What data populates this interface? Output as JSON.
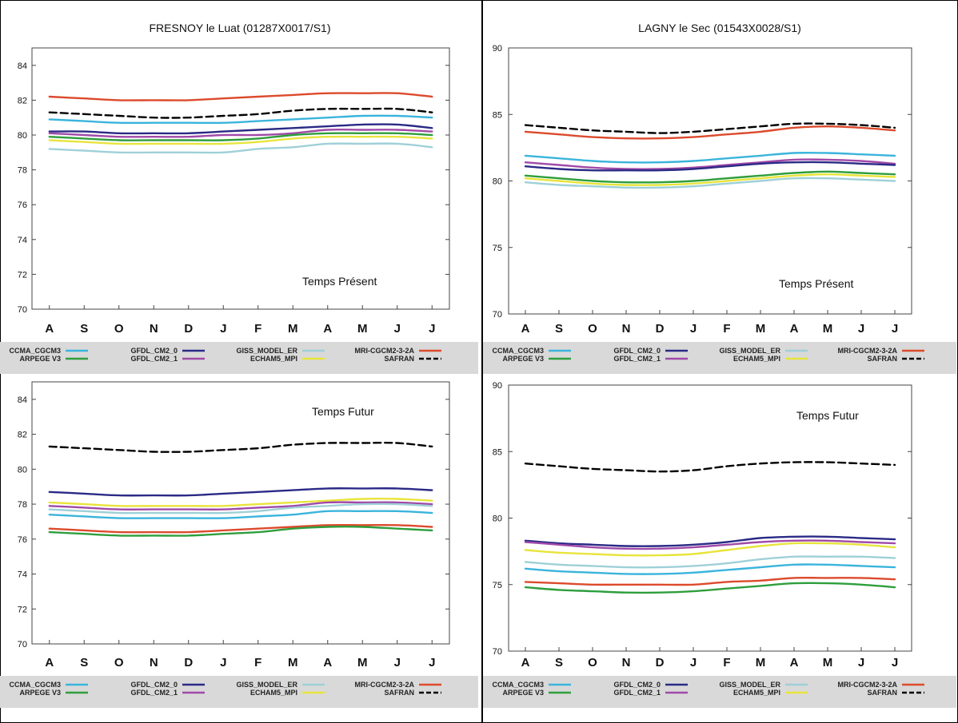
{
  "months": [
    "A",
    "S",
    "O",
    "N",
    "D",
    "J",
    "F",
    "M",
    "A",
    "M",
    "J",
    "J"
  ],
  "colors": {
    "CCMA_CGCM3": "#3ab4dc",
    "ARPEGE_V3": "#2e9e3c",
    "GFDL_CM2_0": "#2a2a86",
    "GFDL_CM2_1": "#a04aa8",
    "GISS_MODEL_ER": "#9fd0d8",
    "ECHAM5_MPI": "#e8e43c",
    "MRI_CGCM2_3_2A": "#dc4a2c",
    "SAFRAN": "#000000"
  },
  "legend_labels": {
    "CCMA_CGCM3": "CCMA_CGCM3",
    "ARPEGE_V3": "ARPEGE V3",
    "GFDL_CM2_0": "GFDL_CM2_0",
    "GFDL_CM2_1": "GFDL_CM2_1",
    "GISS_MODEL_ER": "GISS_MODEL_ER",
    "ECHAM5_MPI": "ECHAM5_MPI",
    "MRI_CGCM2_3_2A": "MRI-CGCM2-3-2A",
    "SAFRAN": "SAFRAN"
  },
  "chart_data": [
    {
      "type": "line",
      "title": "FRESNOY le Luat (01287X0017/S1)",
      "annotation": "Temps Présent",
      "categories": [
        "A",
        "S",
        "O",
        "N",
        "D",
        "J",
        "F",
        "M",
        "A",
        "M",
        "J",
        "J"
      ],
      "ylim": [
        70,
        85
      ],
      "yticks": [
        70,
        72,
        74,
        76,
        78,
        80,
        82,
        84
      ],
      "grid": false,
      "legend": "bottom",
      "series": [
        {
          "name": "MRI_CGCM2_3_2A",
          "values": [
            82.2,
            82.1,
            82.0,
            82.0,
            82.0,
            82.1,
            82.2,
            82.3,
            82.4,
            82.4,
            82.4,
            82.2
          ]
        },
        {
          "name": "SAFRAN",
          "values": [
            81.3,
            81.2,
            81.1,
            81.0,
            81.0,
            81.1,
            81.2,
            81.4,
            81.5,
            81.5,
            81.5,
            81.3
          ]
        },
        {
          "name": "CCMA_CGCM3",
          "values": [
            80.9,
            80.8,
            80.7,
            80.7,
            80.7,
            80.7,
            80.8,
            80.9,
            81.0,
            81.1,
            81.1,
            81.0
          ]
        },
        {
          "name": "GFDL_CM2_0",
          "values": [
            80.2,
            80.2,
            80.1,
            80.1,
            80.1,
            80.2,
            80.3,
            80.4,
            80.5,
            80.6,
            80.6,
            80.4
          ]
        },
        {
          "name": "GFDL_CM2_1",
          "values": [
            80.1,
            80.0,
            79.9,
            79.9,
            79.9,
            80.0,
            80.0,
            80.1,
            80.3,
            80.3,
            80.3,
            80.2
          ]
        },
        {
          "name": "ARPEGE_V3",
          "values": [
            79.9,
            79.8,
            79.7,
            79.7,
            79.7,
            79.7,
            79.8,
            80.0,
            80.1,
            80.1,
            80.1,
            80.0
          ]
        },
        {
          "name": "ECHAM5_MPI",
          "values": [
            79.7,
            79.6,
            79.5,
            79.5,
            79.5,
            79.5,
            79.6,
            79.8,
            79.9,
            79.9,
            79.9,
            79.8
          ]
        },
        {
          "name": "GISS_MODEL_ER",
          "values": [
            79.2,
            79.1,
            79.0,
            79.0,
            79.0,
            79.0,
            79.2,
            79.3,
            79.5,
            79.5,
            79.5,
            79.3
          ]
        }
      ]
    },
    {
      "type": "line",
      "title": "LAGNY le Sec (01543X0028/S1)",
      "annotation": "Temps Présent",
      "categories": [
        "A",
        "S",
        "O",
        "N",
        "D",
        "J",
        "F",
        "M",
        "A",
        "M",
        "J",
        "J"
      ],
      "ylim": [
        70,
        90
      ],
      "yticks": [
        70,
        75,
        80,
        85,
        90
      ],
      "grid": false,
      "legend": "bottom",
      "series": [
        {
          "name": "SAFRAN",
          "values": [
            84.2,
            84.0,
            83.8,
            83.7,
            83.6,
            83.7,
            83.9,
            84.1,
            84.3,
            84.3,
            84.2,
            84.0
          ]
        },
        {
          "name": "MRI_CGCM2_3_2A",
          "values": [
            83.7,
            83.5,
            83.3,
            83.2,
            83.2,
            83.3,
            83.5,
            83.7,
            84.0,
            84.1,
            84.0,
            83.8
          ]
        },
        {
          "name": "CCMA_CGCM3",
          "values": [
            81.9,
            81.7,
            81.5,
            81.4,
            81.4,
            81.5,
            81.7,
            81.9,
            82.1,
            82.1,
            82.0,
            81.9
          ]
        },
        {
          "name": "GFDL_CM2_1",
          "values": [
            81.4,
            81.2,
            81.0,
            80.9,
            80.9,
            81.0,
            81.2,
            81.4,
            81.6,
            81.6,
            81.5,
            81.3
          ]
        },
        {
          "name": "GFDL_CM2_0",
          "values": [
            81.1,
            80.9,
            80.8,
            80.8,
            80.8,
            80.9,
            81.1,
            81.3,
            81.4,
            81.4,
            81.3,
            81.2
          ]
        },
        {
          "name": "ARPEGE_V3",
          "values": [
            80.4,
            80.2,
            80.0,
            79.9,
            79.9,
            80.0,
            80.2,
            80.4,
            80.6,
            80.7,
            80.6,
            80.5
          ]
        },
        {
          "name": "ECHAM5_MPI",
          "values": [
            80.2,
            80.0,
            79.8,
            79.7,
            79.7,
            79.8,
            80.0,
            80.2,
            80.4,
            80.5,
            80.4,
            80.3
          ]
        },
        {
          "name": "GISS_MODEL_ER",
          "values": [
            79.9,
            79.7,
            79.6,
            79.5,
            79.5,
            79.6,
            79.8,
            80.0,
            80.2,
            80.2,
            80.1,
            80.0
          ]
        }
      ]
    },
    {
      "type": "line",
      "title": "",
      "annotation": "Temps Futur",
      "categories": [
        "A",
        "S",
        "O",
        "N",
        "D",
        "J",
        "F",
        "M",
        "A",
        "M",
        "J",
        "J"
      ],
      "ylim": [
        70,
        85
      ],
      "yticks": [
        70,
        72,
        74,
        76,
        78,
        80,
        82,
        84
      ],
      "grid": false,
      "legend": "bottom",
      "series": [
        {
          "name": "SAFRAN",
          "values": [
            81.3,
            81.2,
            81.1,
            81.0,
            81.0,
            81.1,
            81.2,
            81.4,
            81.5,
            81.5,
            81.5,
            81.3
          ]
        },
        {
          "name": "GFDL_CM2_0",
          "values": [
            78.7,
            78.6,
            78.5,
            78.5,
            78.5,
            78.6,
            78.7,
            78.8,
            78.9,
            78.9,
            78.9,
            78.8
          ]
        },
        {
          "name": "ECHAM5_MPI",
          "values": [
            78.1,
            78.0,
            77.9,
            77.9,
            77.9,
            77.9,
            78.0,
            78.1,
            78.2,
            78.3,
            78.3,
            78.2
          ]
        },
        {
          "name": "GFDL_CM2_1",
          "values": [
            77.9,
            77.8,
            77.7,
            77.7,
            77.7,
            77.7,
            77.8,
            77.9,
            78.1,
            78.1,
            78.1,
            78.0
          ]
        },
        {
          "name": "GISS_MODEL_ER",
          "values": [
            77.7,
            77.6,
            77.5,
            77.5,
            77.5,
            77.5,
            77.6,
            77.8,
            77.9,
            78.0,
            78.0,
            77.9
          ]
        },
        {
          "name": "CCMA_CGCM3",
          "values": [
            77.4,
            77.3,
            77.2,
            77.2,
            77.2,
            77.2,
            77.3,
            77.4,
            77.6,
            77.6,
            77.6,
            77.5
          ]
        },
        {
          "name": "MRI_CGCM2_3_2A",
          "values": [
            76.6,
            76.5,
            76.4,
            76.4,
            76.4,
            76.5,
            76.6,
            76.7,
            76.8,
            76.8,
            76.8,
            76.7
          ]
        },
        {
          "name": "ARPEGE_V3",
          "values": [
            76.4,
            76.3,
            76.2,
            76.2,
            76.2,
            76.3,
            76.4,
            76.6,
            76.7,
            76.7,
            76.6,
            76.5
          ]
        }
      ]
    },
    {
      "type": "line",
      "title": "",
      "annotation": "Temps Futur",
      "categories": [
        "A",
        "S",
        "O",
        "N",
        "D",
        "J",
        "F",
        "M",
        "A",
        "M",
        "J",
        "J"
      ],
      "ylim": [
        70,
        90
      ],
      "yticks": [
        70,
        75,
        80,
        85,
        90
      ],
      "grid": false,
      "legend": "bottom",
      "series": [
        {
          "name": "SAFRAN",
          "values": [
            84.1,
            83.9,
            83.7,
            83.6,
            83.5,
            83.6,
            83.9,
            84.1,
            84.2,
            84.2,
            84.1,
            84.0
          ]
        },
        {
          "name": "GFDL_CM2_0",
          "values": [
            78.3,
            78.1,
            78.0,
            77.9,
            77.9,
            78.0,
            78.2,
            78.5,
            78.6,
            78.6,
            78.5,
            78.4
          ]
        },
        {
          "name": "GFDL_CM2_1",
          "values": [
            78.2,
            78.0,
            77.8,
            77.7,
            77.7,
            77.8,
            78.0,
            78.2,
            78.3,
            78.3,
            78.2,
            78.1
          ]
        },
        {
          "name": "ECHAM5_MPI",
          "values": [
            77.6,
            77.4,
            77.3,
            77.2,
            77.2,
            77.3,
            77.6,
            77.9,
            78.1,
            78.1,
            78.0,
            77.8
          ]
        },
        {
          "name": "GISS_MODEL_ER",
          "values": [
            76.7,
            76.5,
            76.4,
            76.3,
            76.3,
            76.4,
            76.6,
            76.9,
            77.1,
            77.1,
            77.1,
            77.0
          ]
        },
        {
          "name": "CCMA_CGCM3",
          "values": [
            76.2,
            76.0,
            75.9,
            75.8,
            75.8,
            75.9,
            76.1,
            76.3,
            76.5,
            76.5,
            76.4,
            76.3
          ]
        },
        {
          "name": "MRI_CGCM2_3_2A",
          "values": [
            75.2,
            75.1,
            75.0,
            75.0,
            75.0,
            75.0,
            75.2,
            75.3,
            75.5,
            75.5,
            75.5,
            75.4
          ]
        },
        {
          "name": "ARPEGE_V3",
          "values": [
            74.8,
            74.6,
            74.5,
            74.4,
            74.4,
            74.5,
            74.7,
            74.9,
            75.1,
            75.1,
            75.0,
            74.8
          ]
        }
      ]
    }
  ]
}
